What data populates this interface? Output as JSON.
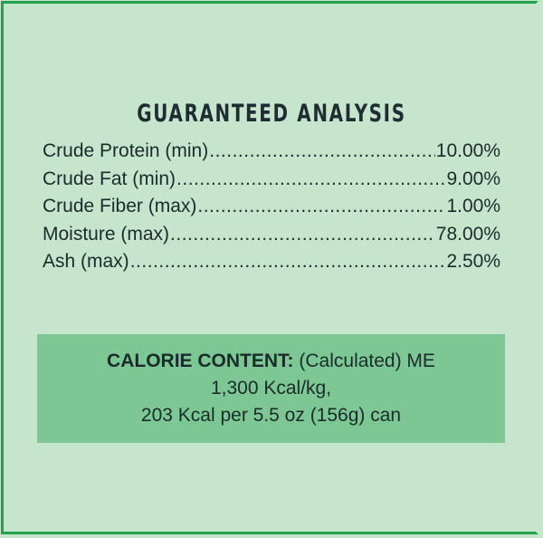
{
  "title": "GUARANTEED ANALYSIS",
  "rows": [
    {
      "label": "Crude Protein (min)",
      "value": "10.00%"
    },
    {
      "label": "Crude Fat (min)",
      "value": "9.00%"
    },
    {
      "label": "Crude Fiber (max)",
      "value": "1.00%"
    },
    {
      "label": "Moisture (max)",
      "value": "78.00%"
    },
    {
      "label": "Ash (max)",
      "value": "2.50%"
    }
  ],
  "calorie": {
    "heading": "CALORIE CONTENT:",
    "line1_rest": " (Calculated) ME",
    "line2": "1,300 Kcal/kg,",
    "line3": "203 Kcal per 5.5 oz (156g) can"
  },
  "colors": {
    "background": "#c6e5cd",
    "border": "#23a14c",
    "calorie_box": "#7cc794"
  }
}
